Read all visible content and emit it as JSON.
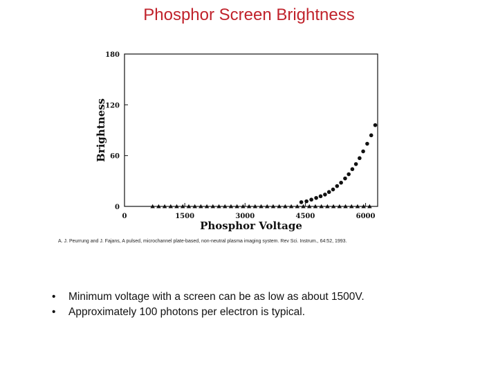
{
  "slide": {
    "title": "Phosphor Screen Brightness",
    "citation": "A. J. Peurrung and J. Fajans,  A pulsed, microchannel plate-based, non-neutral plasma imaging system. Rev Sci. Instrum., 64:52, 1993.",
    "bullets": [
      "Minimum voltage with a screen can be as low as about 1500V.",
      "Approximately 100 photons per electron is typical."
    ],
    "bullet_glyph": "•"
  },
  "chart_data": {
    "type": "scatter",
    "title": "",
    "xlabel": "Phosphor Voltage",
    "ylabel": "Brightness",
    "xlim": [
      0,
      6300
    ],
    "ylim": [
      0,
      180
    ],
    "x_ticks": [
      "0",
      "1500",
      "3000",
      "4500",
      "6000"
    ],
    "y_ticks": [
      "0",
      "60",
      "120",
      "180"
    ],
    "grid": false,
    "legend": "none",
    "series": [
      {
        "marker": "triangle",
        "x": [
          700,
          850,
          1000,
          1150,
          1300,
          1450,
          1600,
          1750,
          1900,
          2050,
          2200,
          2350,
          2500,
          2650,
          2800,
          2950,
          3100,
          3250,
          3400,
          3550,
          3700,
          3850,
          4000,
          4150,
          4300,
          4450,
          4600,
          4750,
          4900,
          5050,
          5200,
          5350,
          5500,
          5650,
          5800,
          5950,
          6100
        ],
        "y": [
          0,
          0,
          0,
          0,
          0,
          0,
          0,
          0,
          0,
          0,
          0,
          0,
          0,
          0,
          0,
          0,
          0,
          0,
          0,
          0,
          0,
          0,
          0,
          0,
          0,
          0,
          0,
          0,
          0,
          0,
          0,
          0,
          0,
          0,
          0,
          0,
          0
        ]
      },
      {
        "marker": "circle",
        "x": [
          4400,
          4530,
          4650,
          4770,
          4880,
          4990,
          5090,
          5190,
          5290,
          5390,
          5490,
          5580,
          5670,
          5760,
          5850,
          5940,
          6040,
          6140,
          6240
        ],
        "y": [
          5,
          6,
          8,
          10,
          12,
          14,
          17,
          20,
          24,
          28,
          33,
          38,
          44,
          50,
          57,
          65,
          74,
          84,
          96
        ]
      }
    ]
  }
}
